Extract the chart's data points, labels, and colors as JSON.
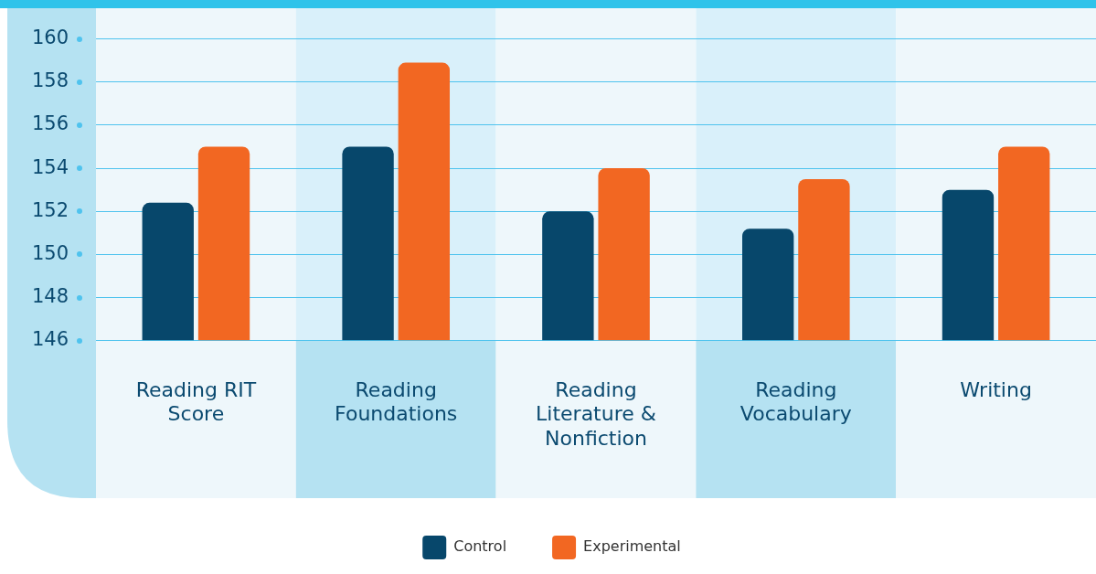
{
  "chart_data": {
    "type": "bar",
    "categories": [
      "Reading RIT Score",
      "Reading Foundations",
      "Reading Literature & Nonfiction",
      "Reading Vocabulary",
      "Writing"
    ],
    "series": [
      {
        "name": "Control",
        "color": "#07476b",
        "values": [
          152.4,
          155.0,
          152.0,
          151.2,
          153.0
        ]
      },
      {
        "name": "Experimental",
        "color": "#f26722",
        "values": [
          155.0,
          158.9,
          154.0,
          153.5,
          155.0
        ]
      }
    ],
    "ylim": [
      146,
      160
    ],
    "yticks": [
      146,
      148,
      150,
      152,
      154,
      156,
      158,
      160
    ],
    "grid": "y",
    "legend": "bottom"
  }
}
